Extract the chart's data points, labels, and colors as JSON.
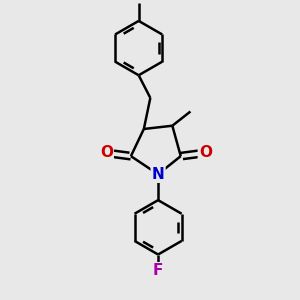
{
  "bg_color": "#e8e8e8",
  "bond_color": "#000000",
  "bond_width": 1.8,
  "atom_colors": {
    "N": "#0000cc",
    "O": "#cc0000",
    "F": "#aa00aa",
    "C": "#000000"
  },
  "font_size_atom": 11,
  "figsize": [
    3.0,
    3.0
  ],
  "dpi": 100,
  "scale": 1.0
}
